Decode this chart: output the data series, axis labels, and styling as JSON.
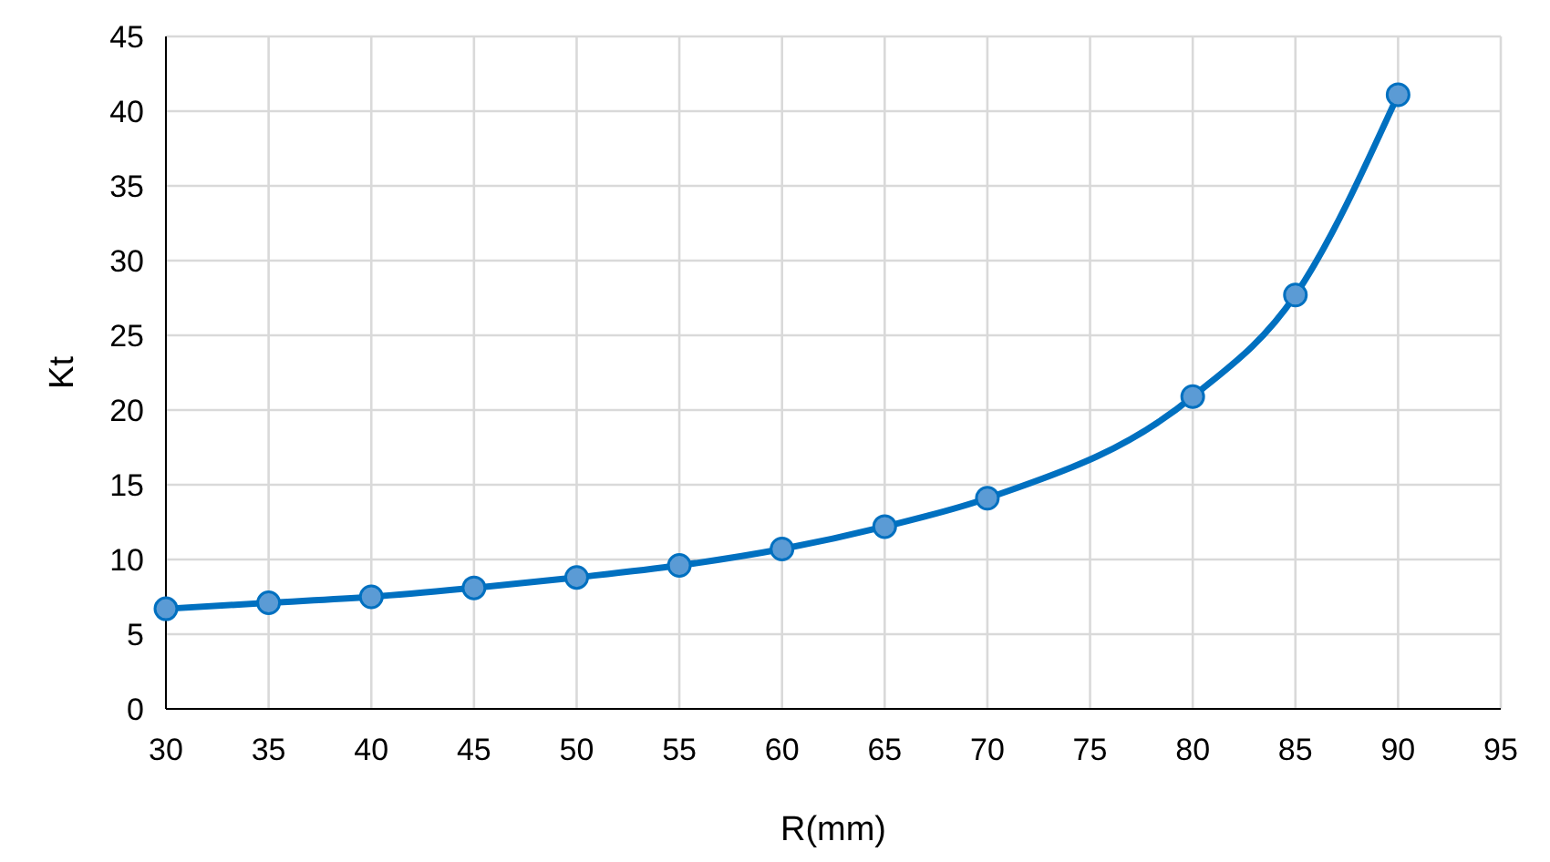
{
  "chart_data": {
    "type": "line",
    "xlabel": "R(mm)",
    "ylabel": "Kt",
    "x": [
      30,
      35,
      40,
      45,
      50,
      55,
      60,
      65,
      70,
      80,
      85,
      90
    ],
    "series": [
      {
        "color": "#0070c0",
        "values": [
          6.7,
          7.1,
          7.5,
          8.1,
          8.8,
          9.6,
          10.7,
          12.2,
          14.1,
          20.9,
          27.7,
          41.1
        ]
      }
    ],
    "xlim": [
      30,
      95
    ],
    "xticks": [
      30,
      35,
      40,
      45,
      50,
      55,
      60,
      65,
      70,
      75,
      80,
      85,
      90,
      95
    ],
    "ylim": [
      0,
      45
    ],
    "yticks": [
      0,
      5,
      10,
      15,
      20,
      25,
      30,
      35,
      40,
      45
    ],
    "grid": true,
    "marker": "circle",
    "line_style": "solid"
  }
}
